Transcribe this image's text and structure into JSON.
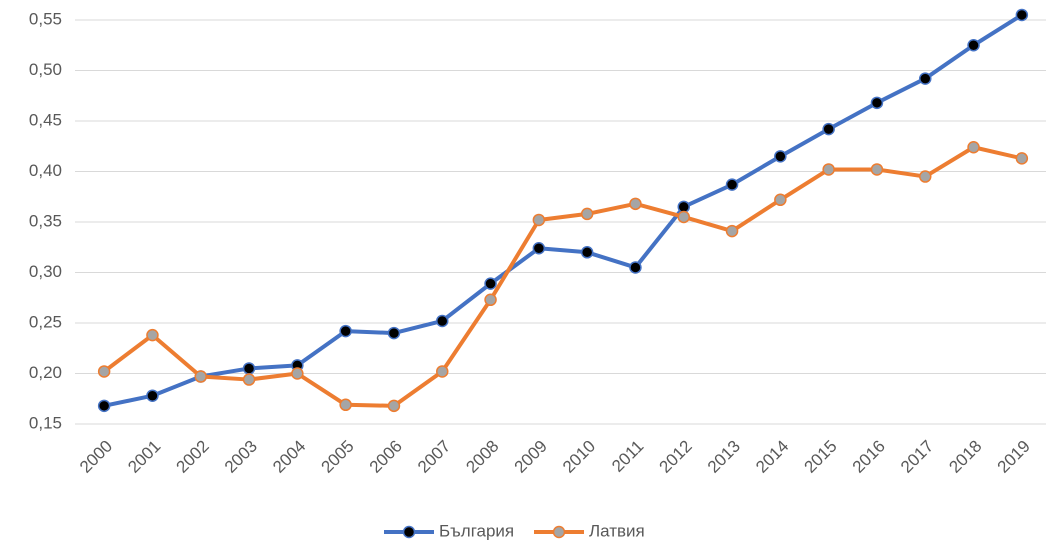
{
  "chart_data": {
    "type": "line",
    "categories": [
      "2000",
      "2001",
      "2002",
      "2003",
      "2004",
      "2005",
      "2006",
      "2007",
      "2008",
      "2009",
      "2010",
      "2011",
      "2012",
      "2013",
      "2014",
      "2015",
      "2016",
      "2017",
      "2018",
      "2019"
    ],
    "series": [
      {
        "name": "България",
        "color": "#4472c4",
        "marker_color": "#000000",
        "values": [
          0.168,
          0.178,
          0.197,
          0.205,
          0.208,
          0.242,
          0.24,
          0.252,
          0.289,
          0.324,
          0.32,
          0.305,
          0.365,
          0.387,
          0.415,
          0.442,
          0.468,
          0.492,
          0.525,
          0.555
        ]
      },
      {
        "name": "Латвия",
        "color": "#ed7d31",
        "marker_color": "#a5a5a5",
        "values": [
          0.202,
          0.238,
          0.197,
          0.194,
          0.2,
          0.169,
          0.168,
          0.202,
          0.273,
          0.352,
          0.358,
          0.368,
          0.355,
          0.341,
          0.372,
          0.402,
          0.402,
          0.395,
          0.424,
          0.413
        ]
      }
    ],
    "ylim": [
      0.15,
      0.55
    ],
    "yticks": [
      {
        "value": 0.15,
        "label": "0,15"
      },
      {
        "value": 0.2,
        "label": "0,20"
      },
      {
        "value": 0.25,
        "label": "0,25"
      },
      {
        "value": 0.3,
        "label": "0,30"
      },
      {
        "value": 0.35,
        "label": "0,35"
      },
      {
        "value": 0.4,
        "label": "0,40"
      },
      {
        "value": 0.45,
        "label": "0,45"
      },
      {
        "value": 0.5,
        "label": "0,50"
      },
      {
        "value": 0.55,
        "label": "0,55"
      }
    ],
    "grid": true,
    "legend": "bottom"
  }
}
